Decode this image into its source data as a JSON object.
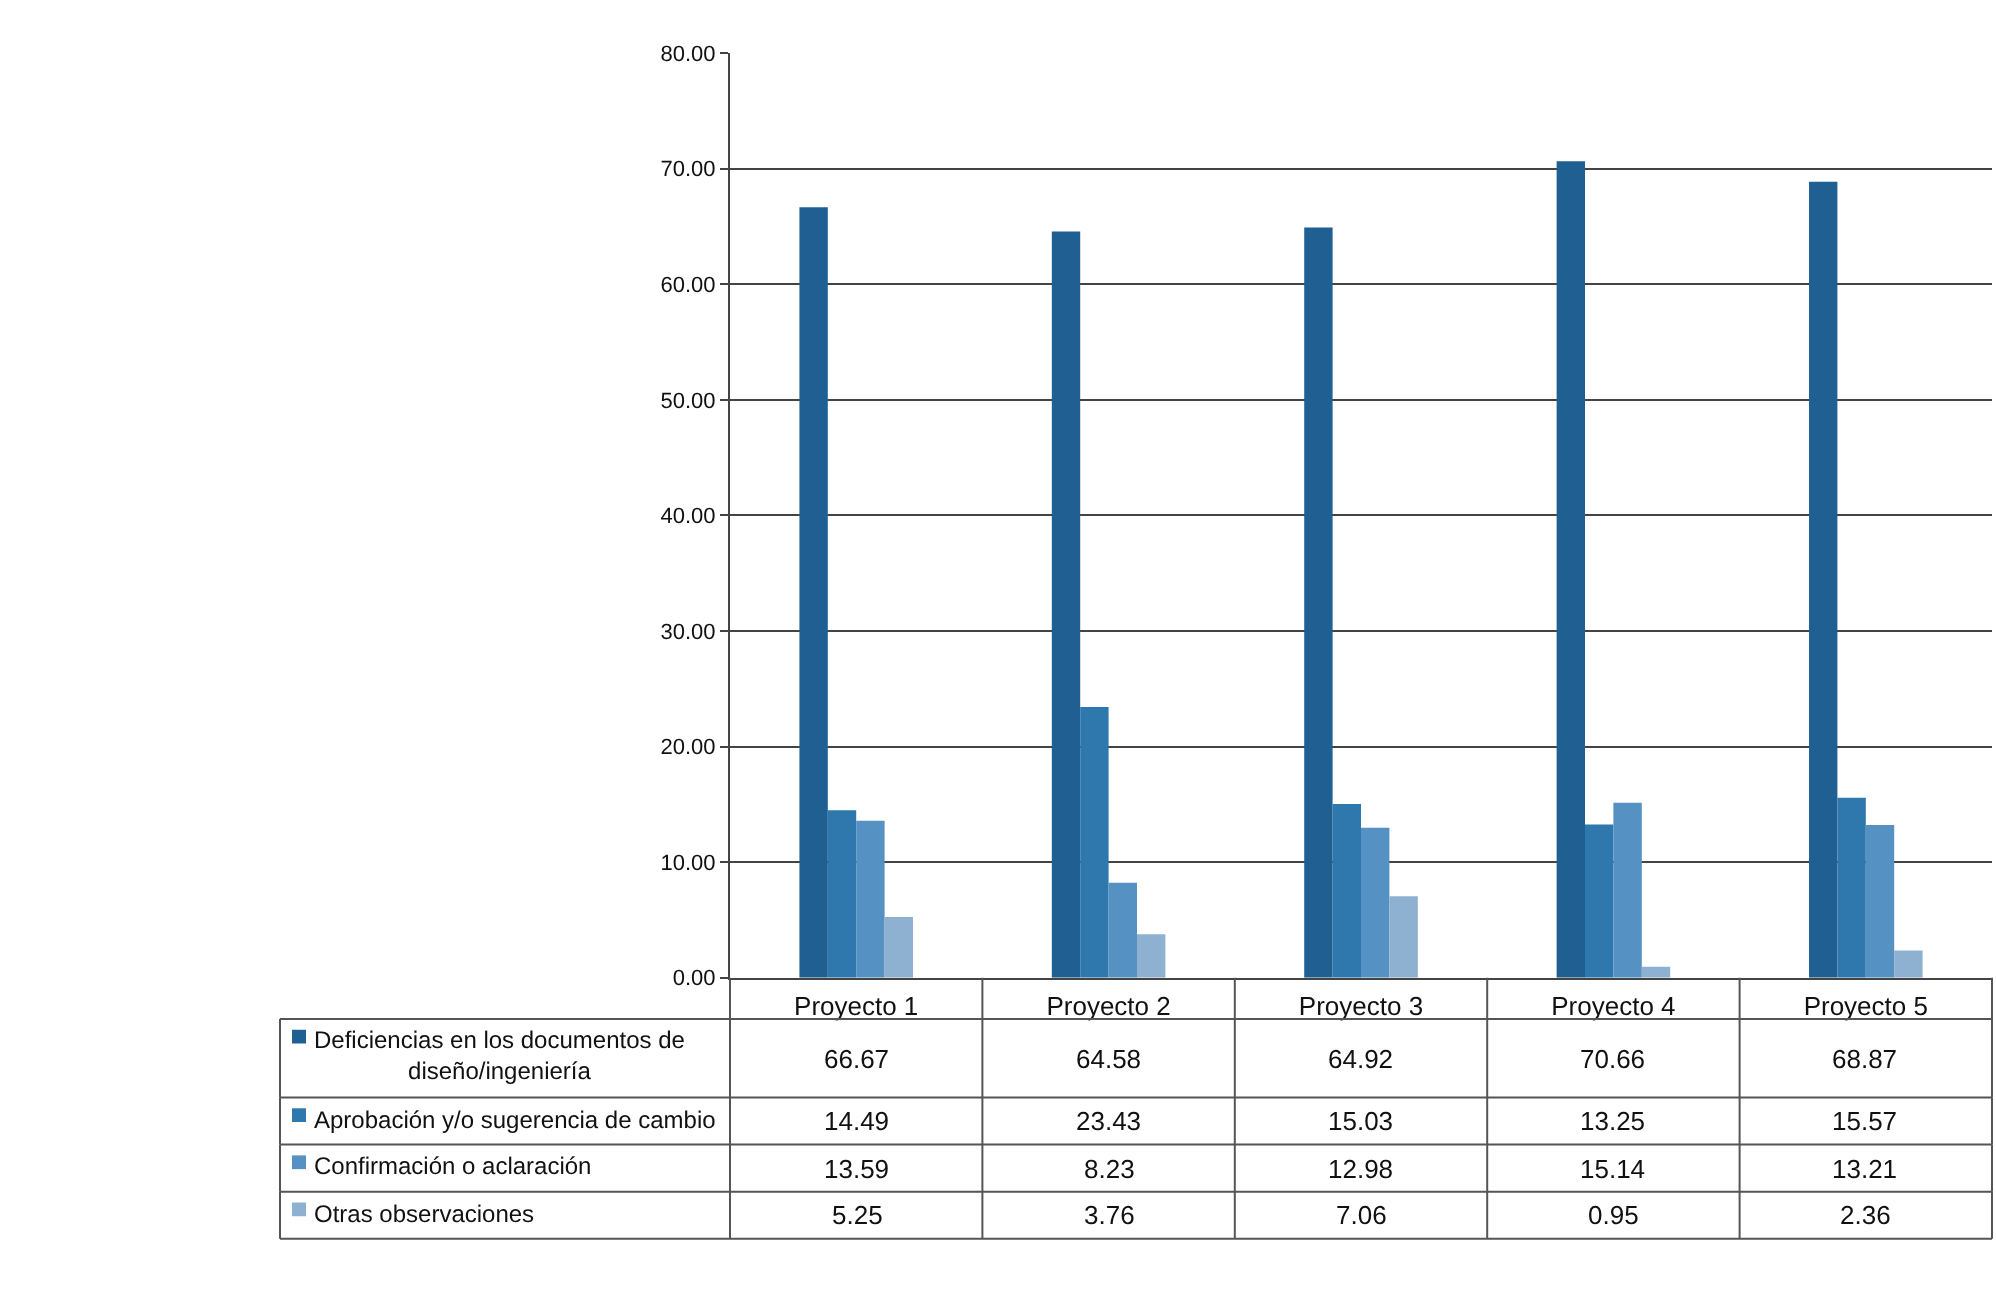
{
  "chart_data": {
    "type": "bar",
    "categories": [
      "Proyecto 1",
      "Proyecto 2",
      "Proyecto 3",
      "Proyecto 4",
      "Proyecto 5"
    ],
    "series": [
      {
        "name": "Deficiencias en los documentos de diseño/ingeniería",
        "color": "#1f5f91",
        "values": [
          66.67,
          64.58,
          64.92,
          70.66,
          68.87
        ]
      },
      {
        "name": "Aprobación y/o sugerencia de cambio",
        "color": "#2e78ad",
        "values": [
          14.49,
          23.43,
          15.03,
          13.25,
          15.57
        ]
      },
      {
        "name": "Confirmación o aclaración",
        "color": "#5591c2",
        "values": [
          13.59,
          8.23,
          12.98,
          15.14,
          13.21
        ]
      },
      {
        "name": "Otras observaciones",
        "color": "#8fb1d1",
        "values": [
          5.25,
          3.76,
          7.06,
          0.95,
          2.36
        ]
      }
    ],
    "ylim": [
      0,
      80
    ],
    "yticks": [
      {
        "value": 0,
        "label": "0.00"
      },
      {
        "value": 10,
        "label": "10.00"
      },
      {
        "value": 20,
        "label": "20.00"
      },
      {
        "value": 30,
        "label": "30.00"
      },
      {
        "value": 40,
        "label": "40.00"
      },
      {
        "value": 50,
        "label": "50.00"
      },
      {
        "value": 60,
        "label": "60.00"
      },
      {
        "value": 70,
        "label": "70.00"
      },
      {
        "value": 80,
        "label": "80.00"
      }
    ],
    "grid": "y",
    "data_labels": true,
    "legend": "bottom"
  }
}
